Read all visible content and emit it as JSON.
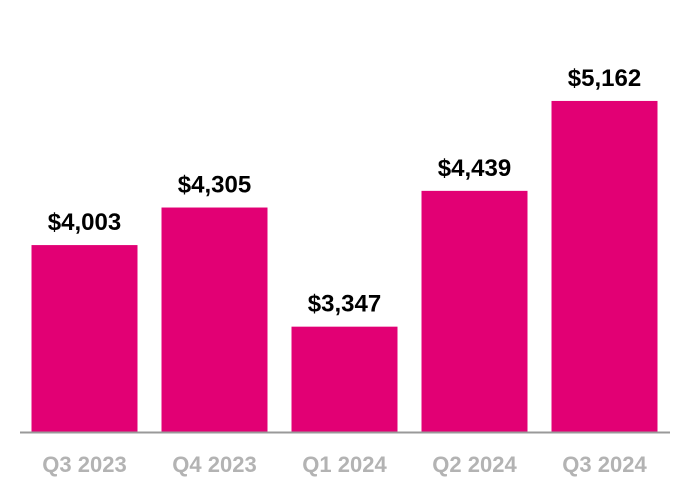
{
  "chart_data": {
    "type": "bar",
    "title": "",
    "xlabel": "",
    "ylabel": "",
    "categories": [
      "Q3 2023",
      "Q4 2023",
      "Q1 2024",
      "Q2 2024",
      "Q3 2024"
    ],
    "values": [
      4003,
      4305,
      3347,
      4439,
      5162
    ],
    "value_labels": [
      "$4,003",
      "$4,305",
      "$3,347",
      "$4,439",
      "$5,162"
    ],
    "ylim": [
      2500,
      5250
    ],
    "grid": false,
    "legend": "none",
    "bar_color": "#E20074",
    "axis_color": "#999999",
    "category_label_color": "#B3B3B3"
  }
}
